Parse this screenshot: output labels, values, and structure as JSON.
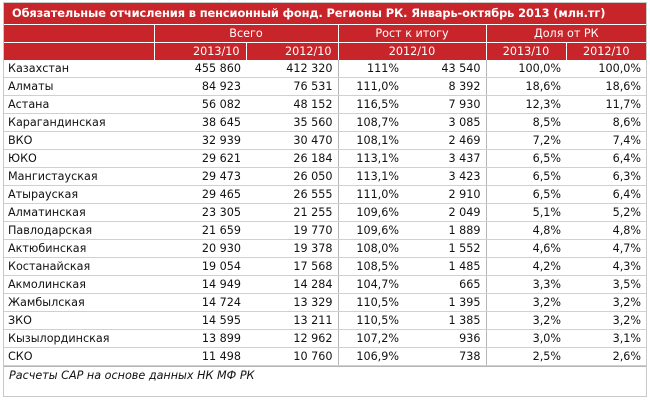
{
  "title": "Обязательные отчисления в пенсионный фонд. Регионы РК. Январь-октябрь 2013 (млн.тг)",
  "header": {
    "group_total": "Всего",
    "group_growth": "Рост к итогу",
    "group_share": "Доля от РК",
    "year_2013": "2013/10",
    "year_2012": "2012/10",
    "growth_year": "2012/10",
    "share_2013": "2013/10",
    "share_2012": "2012/10"
  },
  "rows": [
    {
      "region": "Казахстан",
      "total_2013": "455 860",
      "total_2012": "412 320",
      "growth_pct": "111%",
      "growth_abs": "43 540",
      "share_2013": "100,0%",
      "share_2012": "100,0%"
    },
    {
      "region": "Алматы",
      "total_2013": "84 923",
      "total_2012": "76 531",
      "growth_pct": "111,0%",
      "growth_abs": "8 392",
      "share_2013": "18,6%",
      "share_2012": "18,6%"
    },
    {
      "region": "Астана",
      "total_2013": "56 082",
      "total_2012": "48 152",
      "growth_pct": "116,5%",
      "growth_abs": "7 930",
      "share_2013": "12,3%",
      "share_2012": "11,7%"
    },
    {
      "region": "Карагандинская",
      "total_2013": "38 645",
      "total_2012": "35 560",
      "growth_pct": "108,7%",
      "growth_abs": "3 085",
      "share_2013": "8,5%",
      "share_2012": "8,6%"
    },
    {
      "region": "ВКО",
      "total_2013": "32 939",
      "total_2012": "30 470",
      "growth_pct": "108,1%",
      "growth_abs": "2 469",
      "share_2013": "7,2%",
      "share_2012": "7,4%"
    },
    {
      "region": "ЮКО",
      "total_2013": "29 621",
      "total_2012": "26 184",
      "growth_pct": "113,1%",
      "growth_abs": "3 437",
      "share_2013": "6,5%",
      "share_2012": "6,4%"
    },
    {
      "region": "Мангистауская",
      "total_2013": "29 473",
      "total_2012": "26 050",
      "growth_pct": "113,1%",
      "growth_abs": "3 423",
      "share_2013": "6,5%",
      "share_2012": "6,3%"
    },
    {
      "region": "Атырауская",
      "total_2013": "29 465",
      "total_2012": "26 555",
      "growth_pct": "111,0%",
      "growth_abs": "2 910",
      "share_2013": "6,5%",
      "share_2012": "6,4%"
    },
    {
      "region": "Алматинская",
      "total_2013": "23 305",
      "total_2012": "21 255",
      "growth_pct": "109,6%",
      "growth_abs": "2 049",
      "share_2013": "5,1%",
      "share_2012": "5,2%"
    },
    {
      "region": "Павлодарская",
      "total_2013": "21 659",
      "total_2012": "19 770",
      "growth_pct": "109,6%",
      "growth_abs": "1 889",
      "share_2013": "4,8%",
      "share_2012": "4,8%"
    },
    {
      "region": "Актюбинская",
      "total_2013": "20 930",
      "total_2012": "19 378",
      "growth_pct": "108,0%",
      "growth_abs": "1 552",
      "share_2013": "4,6%",
      "share_2012": "4,7%"
    },
    {
      "region": "Костанайская",
      "total_2013": "19 054",
      "total_2012": "17 568",
      "growth_pct": "108,5%",
      "growth_abs": "1 485",
      "share_2013": "4,2%",
      "share_2012": "4,3%"
    },
    {
      "region": "Акмолинская",
      "total_2013": "14 949",
      "total_2012": "14 284",
      "growth_pct": "104,7%",
      "growth_abs": "665",
      "share_2013": "3,3%",
      "share_2012": "3,5%"
    },
    {
      "region": "Жамбылская",
      "total_2013": "14 724",
      "total_2012": "13 329",
      "growth_pct": "110,5%",
      "growth_abs": "1 395",
      "share_2013": "3,2%",
      "share_2012": "3,2%"
    },
    {
      "region": "ЗКО",
      "total_2013": "14 595",
      "total_2012": "13 211",
      "growth_pct": "110,5%",
      "growth_abs": "1 385",
      "share_2013": "3,2%",
      "share_2012": "3,2%"
    },
    {
      "region": "Кызылординская",
      "total_2013": "13 899",
      "total_2012": "12 962",
      "growth_pct": "107,2%",
      "growth_abs": "936",
      "share_2013": "3,0%",
      "share_2012": "3,1%"
    },
    {
      "region": "СКО",
      "total_2013": "11 498",
      "total_2012": "10 760",
      "growth_pct": "106,9%",
      "growth_abs": "738",
      "share_2013": "2,5%",
      "share_2012": "2,6%"
    }
  ],
  "footnote": "Расчеты CAP на основе данных НК МФ РК",
  "colors": {
    "header_bg": "#c7252a",
    "header_text": "#ffffff"
  }
}
